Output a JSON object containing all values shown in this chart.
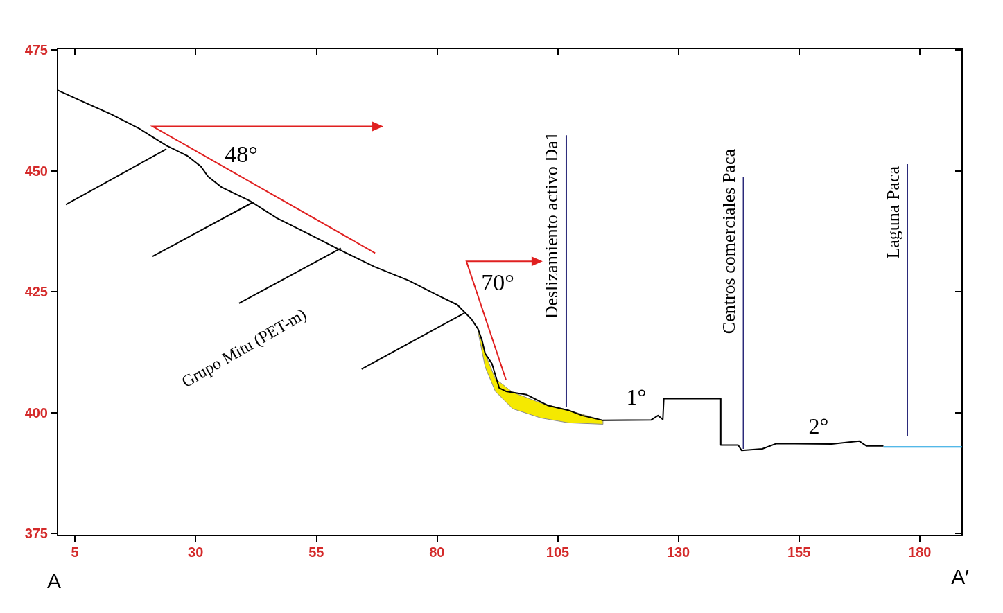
{
  "chart_data": {
    "type": "line",
    "xlim": [
      1.4,
      188.8
    ],
    "ylim": [
      374.6,
      475.3
    ],
    "xticks": [
      5,
      30,
      55,
      80,
      105,
      130,
      155,
      180
    ],
    "yticks": [
      375,
      400,
      425,
      450,
      475
    ],
    "series": [
      {
        "type": "area",
        "color": "#f5e900",
        "x": [
          88.5,
          90.0,
          92.1,
          95.7,
          101.5,
          107.2,
          114.4,
          114.4,
          107.2,
          101.5,
          95.7,
          92.1,
          90.0,
          88.5
        ],
        "values": [
          417.3,
          412.2,
          407.0,
          404.2,
          402.0,
          400.5,
          398.4,
          397.6,
          397.9,
          398.9,
          400.8,
          404.4,
          409.4,
          416.8
        ]
      },
      {
        "color": "#000000",
        "x": [
          1.4,
          6.7,
          12.5,
          18.2,
          24.0,
          28.3,
          31.1,
          32.6,
          35.4,
          41.2,
          46.9,
          54.1,
          59.8,
          67.0,
          74.2,
          79.9,
          84.2,
          87.1,
          88.5,
          89.3,
          90.0,
          91.4,
          92.9,
          94.3,
          98.6,
          102.9,
          107.2,
          110.1,
          114.4,
          124.4,
          125.8,
          126.8,
          127.0,
          138.8,
          138.8,
          142.4,
          143.1,
          147.4,
          150.3,
          161.8,
          165.4,
          167.5,
          169.0,
          172.5
        ],
        "values": [
          466.7,
          464.3,
          461.7,
          458.8,
          455.2,
          453.1,
          450.9,
          448.8,
          446.6,
          443.8,
          440.2,
          436.6,
          433.7,
          430.2,
          427.3,
          424.4,
          422.3,
          419.4,
          417.3,
          415.1,
          412.2,
          410.1,
          405.1,
          404.4,
          403.7,
          401.5,
          400.5,
          399.4,
          398.4,
          398.5,
          399.4,
          398.6,
          402.9,
          402.9,
          393.3,
          393.3,
          392.2,
          392.5,
          393.6,
          393.5,
          393.9,
          394.1,
          393.1,
          393.1
        ]
      },
      {
        "type": "line",
        "color": "#1aa0e0",
        "x": [
          172.5,
          188.8
        ],
        "values": [
          392.9,
          392.9
        ]
      }
    ],
    "annotations": [
      "48°",
      "70°",
      {
        "text": "Deslizamiento activo Da1",
        "x": 106.8,
        "y": 401.2
      },
      {
        "text": "1°",
        "x": 121.3,
        "y": 398.5
      },
      {
        "text": "Centros comerciales Paca",
        "x": 143.5,
        "y": 392.5
      },
      "2°",
      "Laguna Paca",
      {
        "text": "Grupo Mitu (PET-m)",
        "x": 60.1,
        "y": 434.0
      },
      "A",
      "A′"
    ]
  }
}
